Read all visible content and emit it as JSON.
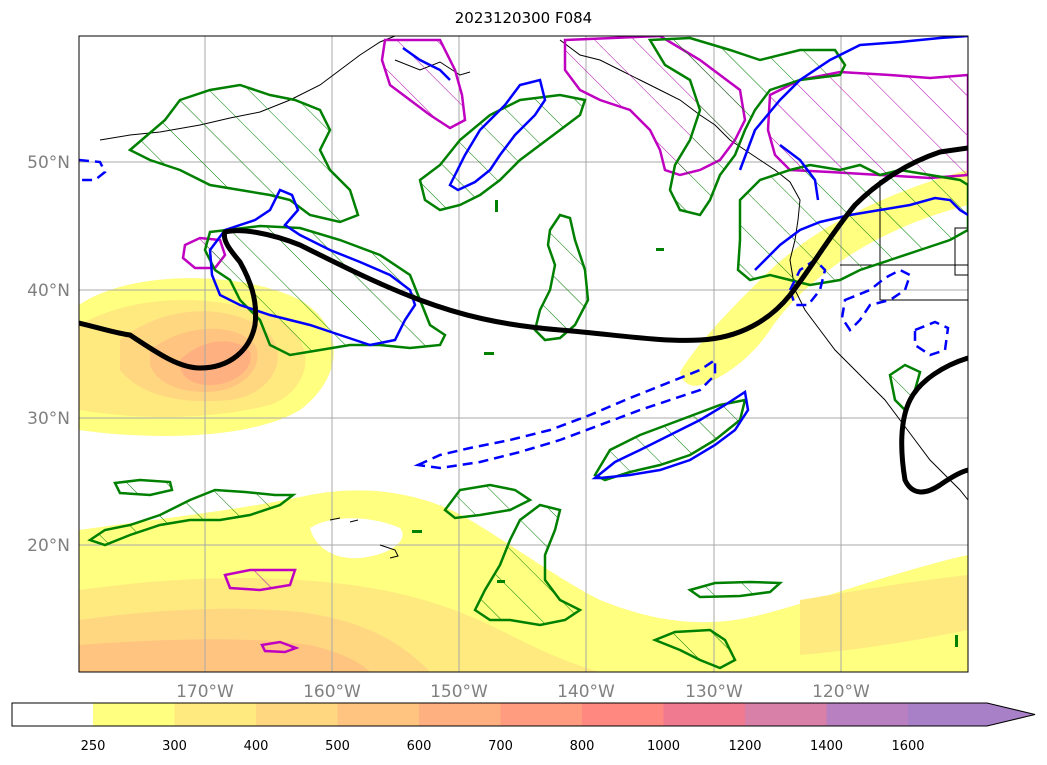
{
  "title": "2023120300 F084",
  "map": {
    "latitude_labels": [
      "50°N",
      "40°N",
      "30°N",
      "20°N"
    ],
    "longitude_labels": [
      "170°W",
      "160°W",
      "150°W",
      "140°W",
      "130°W",
      "120°W"
    ],
    "label_color": "#808080",
    "gridline_color": "#a9a9a9",
    "features": {
      "thick_contour_color": "#000000",
      "solid_blue_contour_color": "#0000ff",
      "dashed_blue_contour_color": "#0000ff",
      "green_hatched_region_color": "#008000",
      "magenta_hatched_region_color": "#c000c0",
      "coastline_color": "#000000"
    }
  },
  "colorbar": {
    "tick_labels": [
      "250",
      "300",
      "400",
      "500",
      "600",
      "700",
      "800",
      "1000",
      "1200",
      "1400",
      "1600"
    ],
    "colors": [
      "#ffff80",
      "#ffea80",
      "#ffd780",
      "#ffc580",
      "#ffb080",
      "#ff9c80",
      "#ff8880",
      "#f07a90",
      "#d880a8",
      "#b880c0",
      "#a880c8"
    ],
    "extend": "max"
  }
}
